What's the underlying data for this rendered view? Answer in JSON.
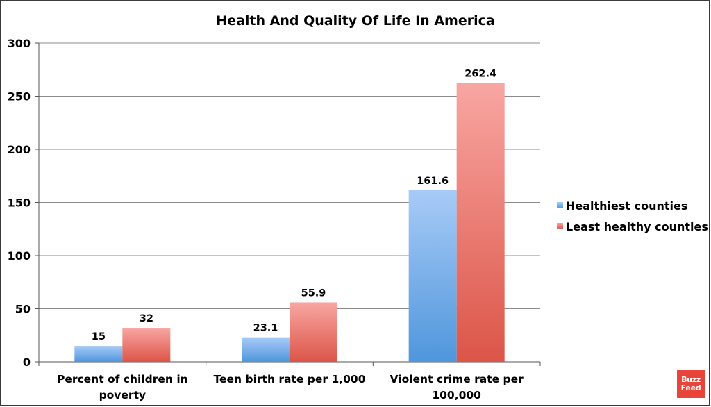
{
  "chart_data": {
    "type": "bar",
    "title": "Health And Quality Of Life In America",
    "categories": [
      [
        "Percent of children in",
        "poverty"
      ],
      [
        "Teen birth rate per 1,000"
      ],
      [
        "Violent crime rate per",
        "100,000"
      ]
    ],
    "series": [
      {
        "name": "Healthiest counties",
        "values": [
          15,
          23.1,
          161.6
        ],
        "labels": [
          "15",
          "23.1",
          "161.6"
        ]
      },
      {
        "name": "Least healthy counties",
        "values": [
          32,
          55.9,
          262.4
        ],
        "labels": [
          "32",
          "55.9",
          "262.4"
        ]
      }
    ],
    "ylim": [
      0,
      300
    ],
    "yticks": [
      0,
      50,
      100,
      150,
      200,
      250,
      300
    ],
    "grid": true,
    "legend_position": "right",
    "colors": {
      "healthiest_top": "#a8cbf7",
      "healthiest_bottom": "#4f96dc",
      "least_top": "#f8a6a2",
      "least_bottom": "#dc5548",
      "grid": "#8c8c8c"
    }
  },
  "logo": {
    "line1": "Buzz",
    "line2": "Feed"
  }
}
